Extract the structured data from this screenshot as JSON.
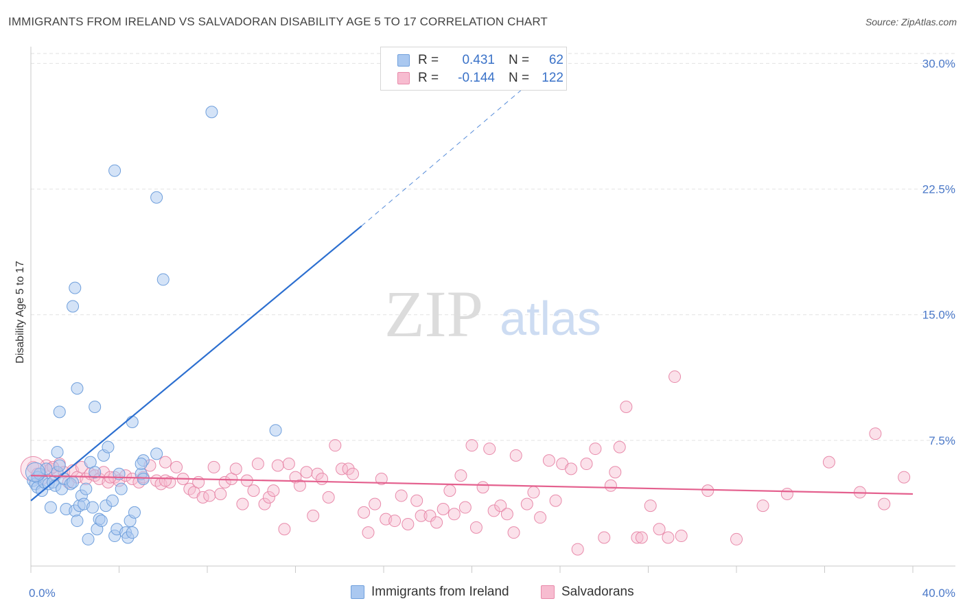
{
  "title": "IMMIGRANTS FROM IRELAND VS SALVADORAN DISABILITY AGE 5 TO 17 CORRELATION CHART",
  "source": "Source: ZipAtlas.com",
  "watermark": {
    "zip": "ZIP",
    "atlas": "atlas"
  },
  "colors": {
    "blue_fill": "#aac8f0",
    "blue_stroke": "#6f9fdc",
    "blue_line": "#2c6fd0",
    "pink_fill": "#f7bcd0",
    "pink_stroke": "#e88aaa",
    "pink_line": "#e4608e",
    "tick_text": "#4a78c8",
    "grid": "#e2e2e2"
  },
  "legend": {
    "rows": [
      {
        "r_label": "R =",
        "r_value": "0.431",
        "n_label": "N =",
        "n_value": "62"
      },
      {
        "r_label": "R =",
        "r_value": "-0.144",
        "n_label": "N =",
        "n_value": "122"
      }
    ]
  },
  "bottom_legend": {
    "series1": "Immigrants from Ireland",
    "series2": "Salvadorans"
  },
  "chart_data": {
    "type": "scatter",
    "xlabel": "",
    "ylabel": "Disability Age 5 to 17",
    "xlim": [
      0,
      40
    ],
    "ylim": [
      0,
      31
    ],
    "x_tick_labels": [
      "0.0%",
      "40.0%"
    ],
    "y_ticks": [
      7.5,
      15.0,
      22.5,
      30.0
    ],
    "y_tick_labels": [
      "7.5%",
      "15.0%",
      "22.5%",
      "30.0%"
    ],
    "grid": true,
    "series": [
      {
        "name": "Immigrants from Ireland",
        "color": "#6f9fdc",
        "trend": {
          "x0": 0,
          "y0": 3.9,
          "x1": 15,
          "y1": 20.3,
          "dash_to_x": 22.5,
          "dash_to_y": 28.7
        },
        "points": [
          [
            0.1,
            5.1
          ],
          [
            0.2,
            4.9
          ],
          [
            0.3,
            5.3
          ],
          [
            0.3,
            4.7
          ],
          [
            0.4,
            5.5
          ],
          [
            0.5,
            4.5
          ],
          [
            0.6,
            5.0
          ],
          [
            0.7,
            5.8
          ],
          [
            0.8,
            4.9
          ],
          [
            0.9,
            3.5
          ],
          [
            1.0,
            5.0
          ],
          [
            1.1,
            4.8
          ],
          [
            1.2,
            5.6
          ],
          [
            1.3,
            6.0
          ],
          [
            1.2,
            6.8
          ],
          [
            1.4,
            4.6
          ],
          [
            1.5,
            5.2
          ],
          [
            1.6,
            3.4
          ],
          [
            1.8,
            4.9
          ],
          [
            1.9,
            5.0
          ],
          [
            2.0,
            3.3
          ],
          [
            2.1,
            2.7
          ],
          [
            2.2,
            3.6
          ],
          [
            2.3,
            4.2
          ],
          [
            2.4,
            3.7
          ],
          [
            2.5,
            4.6
          ],
          [
            2.6,
            1.6
          ],
          [
            2.7,
            6.2
          ],
          [
            2.8,
            3.5
          ],
          [
            2.9,
            5.6
          ],
          [
            3.0,
            2.2
          ],
          [
            3.1,
            2.8
          ],
          [
            3.2,
            2.7
          ],
          [
            3.3,
            6.6
          ],
          [
            3.4,
            3.6
          ],
          [
            3.5,
            7.1
          ],
          [
            3.7,
            3.9
          ],
          [
            3.8,
            1.8
          ],
          [
            3.9,
            2.2
          ],
          [
            4.0,
            5.5
          ],
          [
            4.1,
            4.6
          ],
          [
            4.3,
            2.0
          ],
          [
            4.4,
            1.7
          ],
          [
            4.5,
            2.7
          ],
          [
            4.6,
            2.0
          ],
          [
            4.7,
            3.2
          ],
          [
            5.1,
            6.3
          ],
          [
            5.0,
            5.5
          ],
          [
            1.3,
            9.2
          ],
          [
            2.1,
            10.6
          ],
          [
            2.9,
            9.5
          ],
          [
            4.6,
            8.6
          ],
          [
            5.0,
            6.1
          ],
          [
            5.7,
            6.7
          ],
          [
            6.0,
            17.1
          ],
          [
            2.0,
            16.6
          ],
          [
            1.9,
            15.5
          ],
          [
            3.8,
            23.6
          ],
          [
            5.7,
            22.0
          ],
          [
            8.2,
            27.1
          ],
          [
            11.1,
            8.1
          ],
          [
            5.1,
            5.2
          ]
        ]
      },
      {
        "name": "Salvadorans",
        "color": "#e88aaa",
        "trend": {
          "x0": 0,
          "y0": 5.4,
          "x1": 40,
          "y1": 4.3
        },
        "points": [
          [
            0.1,
            5.9
          ],
          [
            0.3,
            5.5
          ],
          [
            0.5,
            5.2
          ],
          [
            0.7,
            6.0
          ],
          [
            0.9,
            5.8
          ],
          [
            1.1,
            5.4
          ],
          [
            1.3,
            6.1
          ],
          [
            1.5,
            5.6
          ],
          [
            1.7,
            5.0
          ],
          [
            1.9,
            5.7
          ],
          [
            2.1,
            5.3
          ],
          [
            2.3,
            5.9
          ],
          [
            2.5,
            5.2
          ],
          [
            2.7,
            5.5
          ],
          [
            2.9,
            5.4
          ],
          [
            3.1,
            5.2
          ],
          [
            3.3,
            5.6
          ],
          [
            3.5,
            5.0
          ],
          [
            3.8,
            5.3
          ],
          [
            4.0,
            5.1
          ],
          [
            4.3,
            5.4
          ],
          [
            4.6,
            5.2
          ],
          [
            4.9,
            5.0
          ],
          [
            5.1,
            5.3
          ],
          [
            5.4,
            6.0
          ],
          [
            5.7,
            5.1
          ],
          [
            5.9,
            4.9
          ],
          [
            6.1,
            6.2
          ],
          [
            6.3,
            5.0
          ],
          [
            6.6,
            5.9
          ],
          [
            6.9,
            5.2
          ],
          [
            7.2,
            4.6
          ],
          [
            7.4,
            4.4
          ],
          [
            7.6,
            5.0
          ],
          [
            7.8,
            4.1
          ],
          [
            8.1,
            4.2
          ],
          [
            8.3,
            5.9
          ],
          [
            8.6,
            4.3
          ],
          [
            8.8,
            5.0
          ],
          [
            9.1,
            5.2
          ],
          [
            9.3,
            5.8
          ],
          [
            9.6,
            3.7
          ],
          [
            9.8,
            5.1
          ],
          [
            10.1,
            4.5
          ],
          [
            10.3,
            6.1
          ],
          [
            10.6,
            3.7
          ],
          [
            10.8,
            4.1
          ],
          [
            11.0,
            4.5
          ],
          [
            11.2,
            6.0
          ],
          [
            11.5,
            2.2
          ],
          [
            11.7,
            6.1
          ],
          [
            12.0,
            5.3
          ],
          [
            12.2,
            4.8
          ],
          [
            12.5,
            5.6
          ],
          [
            12.8,
            3.0
          ],
          [
            13.0,
            5.5
          ],
          [
            13.2,
            5.2
          ],
          [
            13.5,
            4.1
          ],
          [
            13.8,
            7.2
          ],
          [
            14.1,
            5.8
          ],
          [
            14.4,
            5.8
          ],
          [
            14.6,
            5.5
          ],
          [
            15.1,
            3.2
          ],
          [
            15.3,
            2.0
          ],
          [
            15.6,
            3.7
          ],
          [
            15.9,
            5.2
          ],
          [
            16.1,
            2.8
          ],
          [
            16.5,
            2.7
          ],
          [
            16.8,
            4.2
          ],
          [
            17.1,
            2.5
          ],
          [
            17.5,
            3.9
          ],
          [
            17.7,
            3.0
          ],
          [
            18.1,
            3.0
          ],
          [
            18.4,
            2.6
          ],
          [
            18.7,
            3.4
          ],
          [
            19.0,
            4.5
          ],
          [
            19.2,
            3.1
          ],
          [
            19.5,
            5.4
          ],
          [
            19.7,
            3.5
          ],
          [
            20.0,
            7.2
          ],
          [
            20.2,
            2.3
          ],
          [
            20.5,
            4.7
          ],
          [
            20.8,
            7.0
          ],
          [
            21.0,
            3.3
          ],
          [
            21.3,
            3.6
          ],
          [
            21.6,
            3.1
          ],
          [
            21.9,
            2.0
          ],
          [
            22.0,
            6.6
          ],
          [
            22.5,
            3.7
          ],
          [
            22.8,
            4.4
          ],
          [
            23.1,
            2.9
          ],
          [
            23.5,
            6.3
          ],
          [
            23.8,
            3.9
          ],
          [
            24.1,
            6.1
          ],
          [
            24.5,
            5.8
          ],
          [
            24.8,
            1.0
          ],
          [
            25.2,
            6.1
          ],
          [
            25.6,
            7.0
          ],
          [
            26.0,
            1.7
          ],
          [
            26.3,
            4.8
          ],
          [
            26.5,
            5.6
          ],
          [
            26.7,
            7.1
          ],
          [
            27.0,
            9.5
          ],
          [
            27.5,
            1.7
          ],
          [
            27.7,
            1.7
          ],
          [
            28.1,
            3.6
          ],
          [
            28.5,
            2.2
          ],
          [
            28.9,
            1.7
          ],
          [
            29.2,
            11.3
          ],
          [
            29.5,
            1.8
          ],
          [
            30.7,
            4.5
          ],
          [
            32.0,
            1.6
          ],
          [
            33.2,
            3.6
          ],
          [
            34.3,
            4.3
          ],
          [
            36.2,
            6.2
          ],
          [
            37.6,
            4.4
          ],
          [
            38.3,
            7.9
          ],
          [
            38.7,
            3.7
          ],
          [
            39.6,
            5.3
          ],
          [
            1.0,
            5.9
          ],
          [
            3.6,
            5.3
          ],
          [
            6.1,
            5.1
          ]
        ]
      }
    ]
  }
}
